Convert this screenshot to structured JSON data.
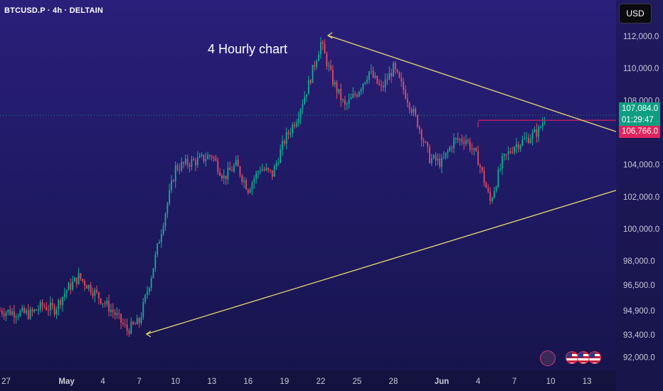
{
  "header": {
    "symbol_title": "BTCUSD.P · 4h · DELTAIN",
    "currency": "USD",
    "annotation": "4 Hourly chart"
  },
  "price_labels": {
    "last_price": "107,084.0",
    "countdown": "01:29:47",
    "level_price": "106,766.0"
  },
  "colors": {
    "up": "#14b195",
    "down": "#ef4a5c",
    "trendline": "#e9dc72",
    "level": "#e0245e"
  },
  "icons": [
    "flash-icon",
    "us-flag-icon",
    "us-flag-icon",
    "us-flag-icon"
  ],
  "chart_data": {
    "type": "candlestick",
    "symbol": "BTCUSD.P",
    "interval": "4h",
    "y_ticks": [
      "112,000.0",
      "110,000.0",
      "108,000.0",
      "104,000.0",
      "102,000.0",
      "100,000.0",
      "98,000.0",
      "96,500.0",
      "94,900.0",
      "93,400.0",
      "92,000.0"
    ],
    "x_ticks": [
      "27",
      "May",
      "4",
      "7",
      "10",
      "13",
      "16",
      "19",
      "22",
      "25",
      "28",
      "Jun",
      "4",
      "7",
      "10",
      "13"
    ],
    "x_tick_days": [
      -4,
      1,
      4,
      7,
      10,
      13,
      16,
      19,
      22,
      25,
      28,
      32,
      35,
      38,
      41,
      44
    ],
    "x_range_days": [
      -4.5,
      46.4
    ],
    "ohlc_anchors": [
      {
        "day": -4.5,
        "price": 94900
      },
      {
        "day": -2,
        "price": 94700
      },
      {
        "day": -1,
        "price": 95200
      },
      {
        "day": 0,
        "price": 95000
      },
      {
        "day": 1,
        "price": 96200
      },
      {
        "day": 2,
        "price": 97000
      },
      {
        "day": 3,
        "price": 96300
      },
      {
        "day": 5,
        "price": 94700
      },
      {
        "day": 6,
        "price": 93700
      },
      {
        "day": 7,
        "price": 94200
      },
      {
        "day": 8,
        "price": 97100
      },
      {
        "day": 9,
        "price": 100500
      },
      {
        "day": 10,
        "price": 103800
      },
      {
        "day": 11,
        "price": 104100
      },
      {
        "day": 12,
        "price": 104300
      },
      {
        "day": 13,
        "price": 104600
      },
      {
        "day": 14,
        "price": 103200
      },
      {
        "day": 15,
        "price": 104000
      },
      {
        "day": 16,
        "price": 102500
      },
      {
        "day": 17,
        "price": 103800
      },
      {
        "day": 18,
        "price": 103400
      },
      {
        "day": 19,
        "price": 105500
      },
      {
        "day": 20,
        "price": 106900
      },
      {
        "day": 21,
        "price": 109000
      },
      {
        "day": 22,
        "price": 111600
      },
      {
        "day": 23,
        "price": 109200
      },
      {
        "day": 24,
        "price": 107600
      },
      {
        "day": 25,
        "price": 108500
      },
      {
        "day": 26,
        "price": 109800
      },
      {
        "day": 27,
        "price": 108700
      },
      {
        "day": 28,
        "price": 110000
      },
      {
        "day": 29,
        "price": 108400
      },
      {
        "day": 30,
        "price": 106600
      },
      {
        "day": 31,
        "price": 104400
      },
      {
        "day": 32,
        "price": 104100
      },
      {
        "day": 33,
        "price": 105500
      },
      {
        "day": 34,
        "price": 105600
      },
      {
        "day": 35,
        "price": 104300
      },
      {
        "day": 36,
        "price": 101700
      },
      {
        "day": 37,
        "price": 104200
      },
      {
        "day": 38,
        "price": 105200
      },
      {
        "day": 39,
        "price": 105600
      },
      {
        "day": 40,
        "price": 106100
      },
      {
        "day": 40.6,
        "price": 107084
      }
    ],
    "trendlines": [
      {
        "name": "upper",
        "from": {
          "day": 22.6,
          "price": 112050
        },
        "to": {
          "day": 46.4,
          "price": 106060
        }
      },
      {
        "name": "lower",
        "from": {
          "day": 7.6,
          "price": 93450
        },
        "to": {
          "day": 46.4,
          "price": 102400
        }
      }
    ],
    "horizontal_level": {
      "price": 106766,
      "from_day": 35.0,
      "to_day": 46.4
    },
    "current_price": 107084,
    "ylim": [
      92000,
      112000
    ]
  }
}
